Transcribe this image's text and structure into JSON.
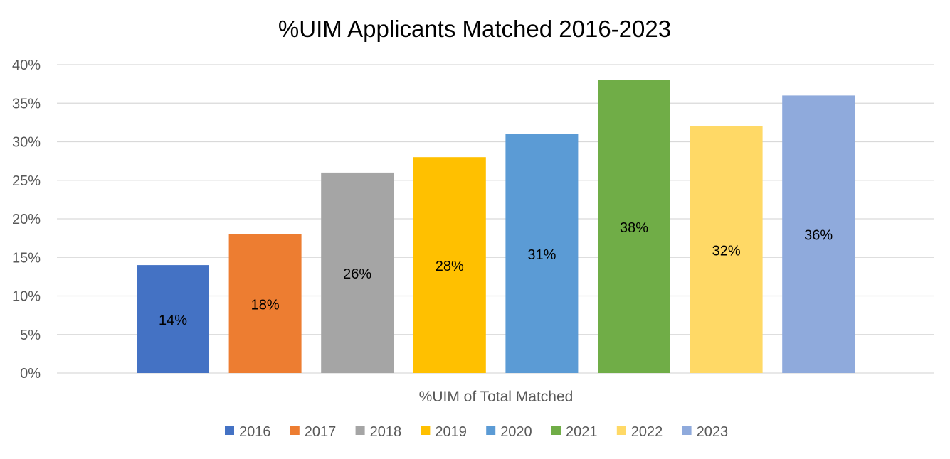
{
  "chart_data": {
    "type": "bar",
    "title": "%UIM Applicants Matched 2016-2023",
    "xlabel": "%UIM of Total Matched",
    "ylabel": "",
    "ylim": [
      0,
      40
    ],
    "yticks": [
      "0%",
      "5%",
      "10%",
      "15%",
      "20%",
      "25%",
      "30%",
      "35%",
      "40%"
    ],
    "ytick_values": [
      0,
      5,
      10,
      15,
      20,
      25,
      30,
      35,
      40
    ],
    "grid": true,
    "legend_position": "bottom",
    "series": [
      {
        "name": "2016",
        "values": [
          14
        ],
        "label": "14%",
        "color": "#4472C4"
      },
      {
        "name": "2017",
        "values": [
          18
        ],
        "label": "18%",
        "color": "#ED7D31"
      },
      {
        "name": "2018",
        "values": [
          26
        ],
        "label": "26%",
        "color": "#A5A5A5"
      },
      {
        "name": "2019",
        "values": [
          28
        ],
        "label": "28%",
        "color": "#FFC000"
      },
      {
        "name": "2020",
        "values": [
          31
        ],
        "label": "31%",
        "color": "#5B9BD5"
      },
      {
        "name": "2021",
        "values": [
          38
        ],
        "label": "38%",
        "color": "#70AD47"
      },
      {
        "name": "2022",
        "values": [
          32
        ],
        "label": "32%",
        "color": "#FFD966"
      },
      {
        "name": "2023",
        "values": [
          36
        ],
        "label": "36%",
        "color": "#8FAADC"
      }
    ]
  }
}
